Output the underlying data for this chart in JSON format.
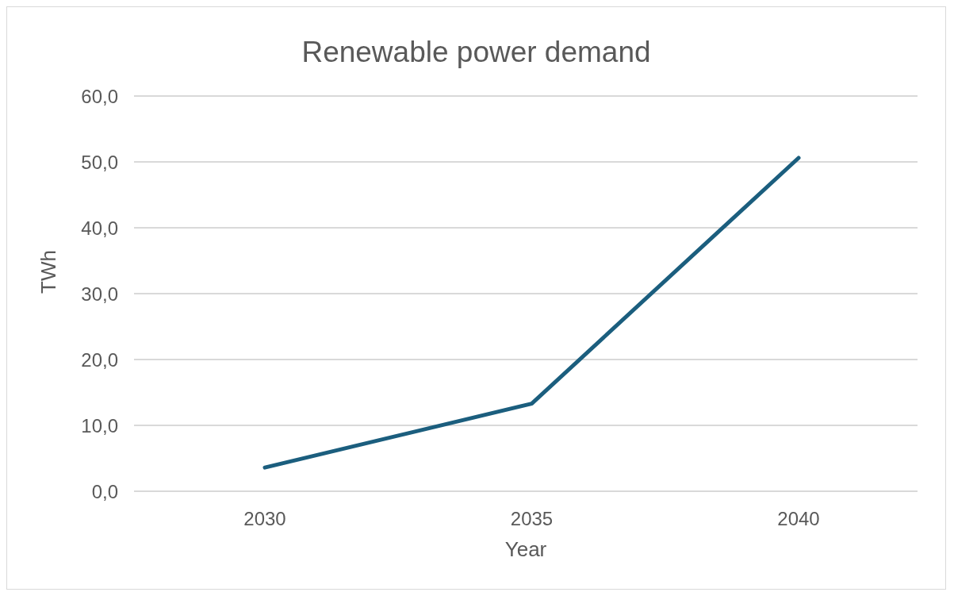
{
  "chart_data": {
    "type": "line",
    "title": "Renewable power demand",
    "xlabel": "Year",
    "ylabel": "TWh",
    "categories": [
      "2030",
      "2035",
      "2040"
    ],
    "series": [
      {
        "color": "#1b5e7e",
        "values": [
          3.6,
          13.3,
          50.6
        ]
      }
    ],
    "ylim": [
      0,
      60
    ],
    "yticks": [
      {
        "value": 0,
        "label": "0,0"
      },
      {
        "value": 10,
        "label": "10,0"
      },
      {
        "value": 20,
        "label": "20,0"
      },
      {
        "value": 30,
        "label": "30,0"
      },
      {
        "value": 40,
        "label": "40,0"
      },
      {
        "value": 50,
        "label": "50,0"
      },
      {
        "value": 60,
        "label": "60,0"
      }
    ],
    "grid": "y",
    "legend": false,
    "marker": "none",
    "line_style": "solid"
  }
}
